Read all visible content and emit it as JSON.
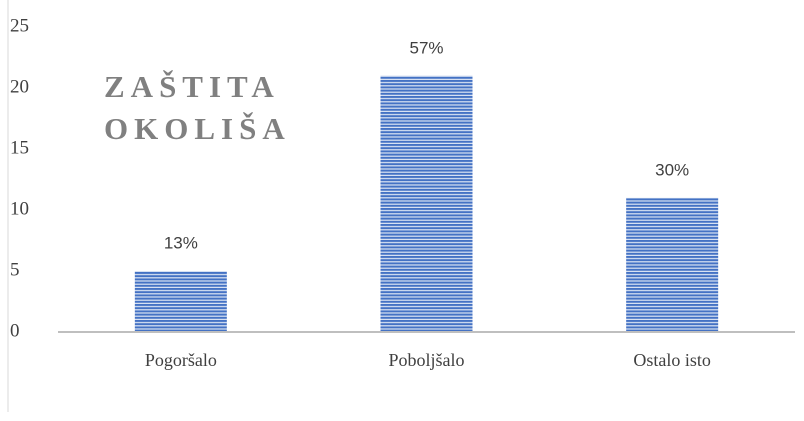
{
  "chart_data": {
    "type": "bar",
    "title": "ZAŠTITA OKOLIŠA",
    "categories": [
      "Pogoršalo",
      "Poboljšalo",
      "Ostalo isto"
    ],
    "values": [
      5,
      21,
      11
    ],
    "value_labels": [
      "13%",
      "57%",
      "30%"
    ],
    "color": "#4472c4",
    "ylim": [
      0,
      25
    ],
    "yticks": [
      0,
      5,
      10,
      15,
      20,
      25
    ],
    "grid": false
  }
}
